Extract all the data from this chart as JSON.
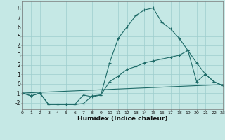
{
  "xlabel": "Humidex (Indice chaleur)",
  "bg_color": "#c5e8e5",
  "grid_color": "#9ecece",
  "line_color": "#1e6b68",
  "line1_x": [
    0,
    1,
    2,
    3,
    4,
    5,
    6,
    7,
    8,
    9,
    10,
    11,
    12,
    13,
    14,
    15,
    16,
    17,
    18,
    19,
    20,
    21,
    22,
    23
  ],
  "line1_y": [
    -1.0,
    -1.3,
    -1.0,
    -2.2,
    -2.2,
    -2.2,
    -2.2,
    -2.1,
    -1.3,
    -1.2,
    2.2,
    4.8,
    6.0,
    7.2,
    7.8,
    8.0,
    6.5,
    5.8,
    4.8,
    3.5,
    0.2,
    1.0,
    0.2,
    -0.2
  ],
  "line2_x": [
    0,
    1,
    2,
    3,
    4,
    5,
    6,
    7,
    8,
    9,
    10,
    11,
    12,
    13,
    14,
    15,
    16,
    17,
    18,
    19,
    20,
    21,
    22,
    23
  ],
  "line2_y": [
    -1.0,
    -1.3,
    -1.0,
    -2.2,
    -2.2,
    -2.2,
    -2.2,
    -1.2,
    -1.4,
    -1.2,
    0.2,
    0.8,
    1.5,
    1.8,
    2.2,
    2.4,
    2.6,
    2.8,
    3.0,
    3.5,
    2.2,
    1.0,
    0.2,
    -0.2
  ],
  "line3_x": [
    0,
    23
  ],
  "line3_y": [
    -1.0,
    -0.1
  ],
  "xlim": [
    0,
    23
  ],
  "ylim": [
    -2.7,
    8.7
  ],
  "yticks": [
    -2,
    -1,
    0,
    1,
    2,
    3,
    4,
    5,
    6,
    7,
    8
  ],
  "xticks": [
    0,
    1,
    2,
    3,
    4,
    5,
    6,
    7,
    8,
    9,
    10,
    11,
    12,
    13,
    14,
    15,
    16,
    17,
    18,
    19,
    20,
    21,
    22,
    23
  ]
}
